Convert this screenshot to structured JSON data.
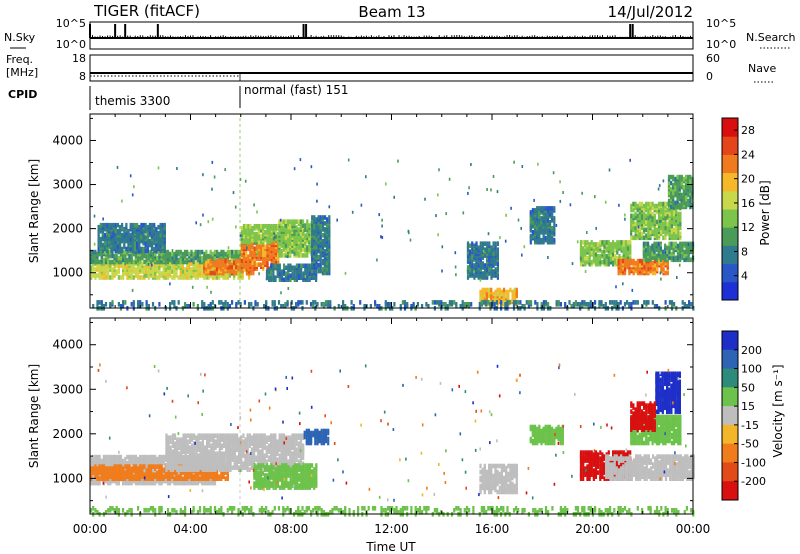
{
  "chart_data": {
    "type": "heatmap",
    "header": {
      "title_left": "TIGER (fitACF)",
      "title_center": "Beam 13",
      "title_right": "14/Jul/2012"
    },
    "time_axis": {
      "xlabel": "Time UT",
      "tick_labels": [
        "00:00",
        "04:00",
        "08:00",
        "12:00",
        "16:00",
        "20:00",
        "00:00"
      ],
      "range_hours": [
        0,
        24
      ]
    },
    "range_axis": {
      "ylabel": "Slant Range [km]",
      "ticks": [
        1000,
        2000,
        3000,
        4000
      ],
      "range_km": [
        200,
        4600
      ]
    },
    "noise_panel": {
      "left_label": "N.Sky",
      "right_label": "N.Search",
      "left_ticks": [
        "10^5",
        "10^0"
      ],
      "right_ticks": [
        "10^5",
        "10^0"
      ],
      "spikes_hours": [
        0.0,
        1.0,
        1.4,
        2.7,
        8.5,
        8.6,
        21.5,
        21.6
      ]
    },
    "freq_panel": {
      "left_label_1": "Freq.",
      "left_label_2": "[MHz]",
      "right_label": "Nave",
      "left_ticks": [
        "18",
        "8"
      ],
      "right_ticks": [
        "60",
        "0"
      ]
    },
    "cpid_panel": {
      "label": "CPID",
      "modes": [
        {
          "name": "themis 3300",
          "start_hour": 0,
          "end_hour": 6
        },
        {
          "name": "normal (fast) 151",
          "start_hour": 6,
          "end_hour": 24
        }
      ]
    },
    "power_panel": {
      "colorbar_label": "Power [dB]",
      "colorbar_ticks": [
        4,
        8,
        12,
        16,
        20,
        24,
        28
      ],
      "colorbar_range": [
        0,
        30
      ],
      "colors": [
        "#1f2fd6",
        "#2a57c8",
        "#2f7a8c",
        "#4a9a5a",
        "#7cc44a",
        "#c8d84a",
        "#f5b82a",
        "#f07b1e",
        "#e5451a",
        "#d90f0f"
      ],
      "blobs": [
        {
          "t0": 0.0,
          "t1": 6.3,
          "r0": 900,
          "r1": 1250,
          "value": 18
        },
        {
          "t0": 0.0,
          "t1": 6.0,
          "r0": 1250,
          "r1": 1500,
          "value": 10
        },
        {
          "t0": 0.3,
          "t1": 3.0,
          "r0": 1500,
          "r1": 2100,
          "value": 6
        },
        {
          "t0": 4.5,
          "t1": 6.5,
          "r0": 1000,
          "r1": 1300,
          "value": 24
        },
        {
          "t0": 6.0,
          "t1": 7.5,
          "r0": 1100,
          "r1": 1800,
          "value": 22
        },
        {
          "t0": 6.0,
          "t1": 8.0,
          "r0": 1700,
          "r1": 2100,
          "value": 14
        },
        {
          "t0": 7.5,
          "t1": 9.0,
          "r0": 1400,
          "r1": 2200,
          "value": 12
        },
        {
          "t0": 7.0,
          "t1": 9.0,
          "r0": 850,
          "r1": 1200,
          "value": 8
        },
        {
          "t0": 8.8,
          "t1": 9.5,
          "r0": 1000,
          "r1": 2300,
          "value": 6
        },
        {
          "t0": 15.0,
          "t1": 16.2,
          "r0": 900,
          "r1": 1700,
          "value": 8
        },
        {
          "t0": 15.5,
          "t1": 17.0,
          "r0": 300,
          "r1": 650,
          "value": 20
        },
        {
          "t0": 17.5,
          "t1": 18.5,
          "r0": 1700,
          "r1": 2500,
          "value": 6
        },
        {
          "t0": 19.5,
          "t1": 21.5,
          "r0": 1200,
          "r1": 1700,
          "value": 14
        },
        {
          "t0": 21.0,
          "t1": 23.0,
          "r0": 1000,
          "r1": 1300,
          "value": 22
        },
        {
          "t0": 22.0,
          "t1": 24.0,
          "r0": 1300,
          "r1": 1700,
          "value": 10
        },
        {
          "t0": 21.5,
          "t1": 23.5,
          "r0": 1800,
          "r1": 2600,
          "value": 12
        },
        {
          "t0": 23.0,
          "t1": 24.0,
          "r0": 2500,
          "r1": 3200,
          "value": 10
        }
      ],
      "ground_band": {
        "t0": 0,
        "t1": 24,
        "r0": 200,
        "r1": 350,
        "value": 6
      }
    },
    "velocity_panel": {
      "colorbar_label": "Velocity [m s⁻¹]",
      "colorbar_ticks": [
        200,
        100,
        50,
        15,
        -15,
        -50,
        -100,
        -200
      ],
      "colors": [
        "#1e2fc8",
        "#2d64b4",
        "#2e8a7a",
        "#6cc24a",
        "#bebebe",
        "#f3b62a",
        "#f07c1c",
        "#e24a18",
        "#d81010"
      ],
      "blobs": [
        {
          "t0": 0.0,
          "t1": 5.0,
          "r0": 900,
          "r1": 1500,
          "class": 4
        },
        {
          "t0": 0.0,
          "t1": 5.5,
          "r0": 1000,
          "r1": 1300,
          "class": 6
        },
        {
          "t0": 3.0,
          "t1": 8.5,
          "r0": 1200,
          "r1": 2000,
          "class": 4
        },
        {
          "t0": 6.5,
          "t1": 9.0,
          "r0": 800,
          "r1": 1300,
          "class": 3
        },
        {
          "t0": 8.5,
          "t1": 9.5,
          "r0": 1800,
          "r1": 2100,
          "class": 1
        },
        {
          "t0": 15.5,
          "t1": 17.0,
          "r0": 700,
          "r1": 1300,
          "class": 4
        },
        {
          "t0": 17.5,
          "t1": 18.8,
          "r0": 1800,
          "r1": 2200,
          "class": 3
        },
        {
          "t0": 19.5,
          "t1": 21.5,
          "r0": 1000,
          "r1": 1600,
          "class": 8
        },
        {
          "t0": 20.5,
          "t1": 24.0,
          "r0": 1000,
          "r1": 1500,
          "class": 4
        },
        {
          "t0": 21.5,
          "t1": 23.5,
          "r0": 1800,
          "r1": 2400,
          "class": 3
        },
        {
          "t0": 22.5,
          "t1": 23.5,
          "r0": 2500,
          "r1": 3400,
          "class": 0
        },
        {
          "t0": 21.5,
          "t1": 22.5,
          "r0": 2100,
          "r1": 2700,
          "class": 8
        }
      ],
      "ground_band": {
        "t0": 0,
        "t1": 24,
        "r0": 200,
        "r1": 350,
        "class": 3
      }
    }
  }
}
